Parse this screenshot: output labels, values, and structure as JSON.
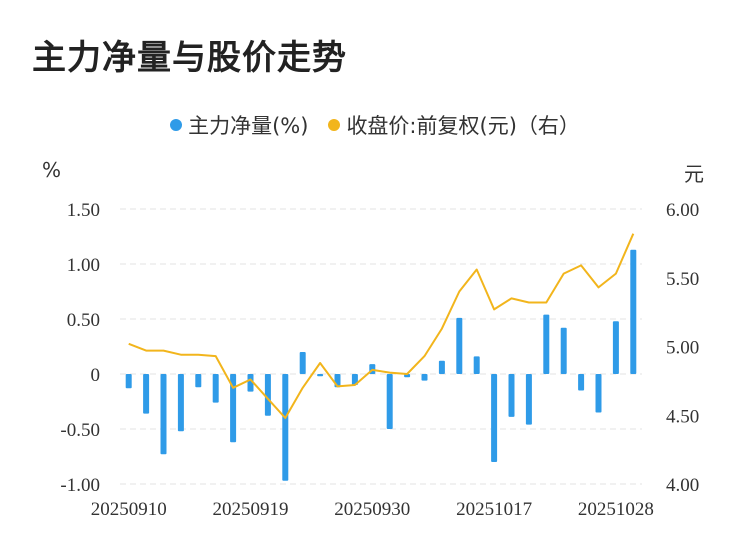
{
  "title": "主力净量与股价走势",
  "legend": {
    "bar_label": "主力净量(%)",
    "line_label": "收盘价:前复权(元)（右）"
  },
  "units": {
    "left": "%",
    "right": "元"
  },
  "colors": {
    "bar": "#2f9be8",
    "line": "#f2b51c",
    "grid": "#e3e3e3"
  },
  "chart_data": {
    "type": "bar+line",
    "title": "主力净量与股价走势",
    "y_left": {
      "label": "%",
      "range": [
        -1.0,
        1.5
      ],
      "ticks": [
        "1.50",
        "1.00",
        "0.50",
        "0",
        "-0.50",
        "-1.00"
      ],
      "tick_values": [
        1.5,
        1.0,
        0.5,
        0,
        -0.5,
        -1.0
      ]
    },
    "y_right": {
      "label": "元",
      "range": [
        4.0,
        6.0
      ],
      "ticks": [
        "6.00",
        "5.50",
        "5.00",
        "4.50",
        "4.00"
      ],
      "tick_values": [
        6.0,
        5.5,
        5.0,
        4.5,
        4.0
      ]
    },
    "x_ticks": [
      {
        "label": "20250910",
        "index": 0
      },
      {
        "label": "20250919",
        "index": 7
      },
      {
        "label": "20250930",
        "index": 14
      },
      {
        "label": "20251017",
        "index": 21
      },
      {
        "label": "20251028",
        "index": 28
      }
    ],
    "series": [
      {
        "name": "主力净量(%)",
        "type": "bar",
        "axis": "left",
        "values": [
          -0.13,
          -0.36,
          -0.73,
          -0.52,
          -0.12,
          -0.26,
          -0.62,
          -0.16,
          -0.38,
          -0.97,
          0.2,
          -0.02,
          -0.12,
          -0.1,
          0.09,
          -0.5,
          -0.03,
          -0.06,
          0.12,
          0.51,
          0.16,
          -0.8,
          -0.39,
          -0.46,
          0.54,
          0.42,
          -0.15,
          -0.35,
          0.48,
          1.13
        ]
      },
      {
        "name": "收盘价:前复权(元)（右）",
        "type": "line",
        "axis": "right",
        "values": [
          5.02,
          4.97,
          4.97,
          4.94,
          4.94,
          4.93,
          4.7,
          4.76,
          4.62,
          4.48,
          4.7,
          4.88,
          4.71,
          4.72,
          4.83,
          4.81,
          4.8,
          4.93,
          5.13,
          5.4,
          5.56,
          5.27,
          5.35,
          5.32,
          5.32,
          5.53,
          5.59,
          5.43,
          5.53,
          5.82
        ]
      }
    ]
  }
}
